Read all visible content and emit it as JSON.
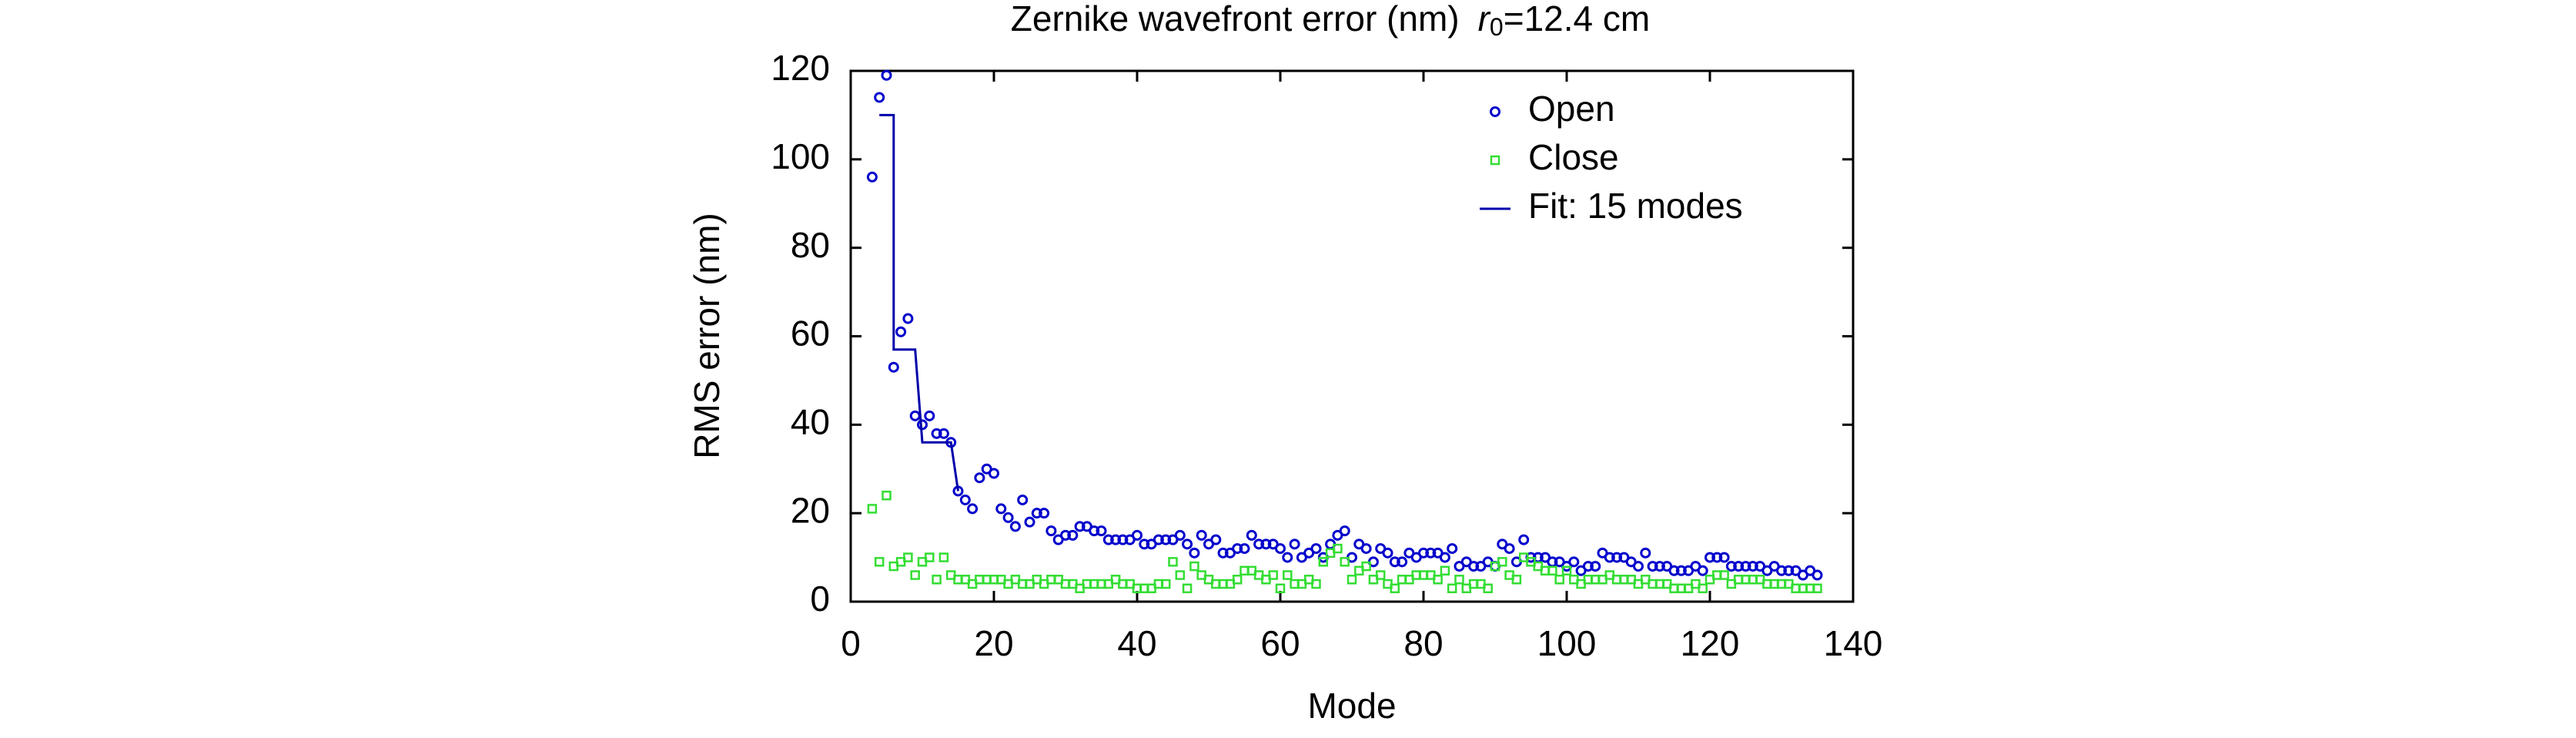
{
  "chart_data": {
    "type": "scatter",
    "title": {
      "text": "Zernike wavefront error (nm)",
      "var": "r",
      "sub": "0",
      "rest": "=12.4 cm"
    },
    "x_label": "Mode",
    "y_label": "RMS error (nm)",
    "xlim": [
      0,
      140
    ],
    "xticks": [
      0,
      20,
      40,
      60,
      80,
      100,
      120,
      140
    ],
    "ylim": [
      0,
      120
    ],
    "yticks": [
      0,
      20,
      40,
      60,
      80,
      100,
      120
    ],
    "legend": "upper right",
    "x": [
      3,
      4,
      5,
      6,
      7,
      8,
      9,
      10,
      11,
      12,
      13,
      14,
      15,
      16,
      17,
      18,
      19,
      20,
      21,
      22,
      23,
      24,
      25,
      26,
      27,
      28,
      29,
      30,
      31,
      32,
      33,
      34,
      35,
      36,
      37,
      38,
      39,
      40,
      41,
      42,
      43,
      44,
      45,
      46,
      47,
      48,
      49,
      50,
      51,
      52,
      53,
      54,
      55,
      56,
      57,
      58,
      59,
      60,
      61,
      62,
      63,
      64,
      65,
      66,
      67,
      68,
      69,
      70,
      71,
      72,
      73,
      74,
      75,
      76,
      77,
      78,
      79,
      80,
      81,
      82,
      83,
      84,
      85,
      86,
      87,
      88,
      89,
      90,
      91,
      92,
      93,
      94,
      95,
      96,
      97,
      98,
      99,
      100,
      101,
      102,
      103,
      104,
      105,
      106,
      107,
      108,
      109,
      110,
      111,
      112,
      113,
      114,
      115,
      116,
      117,
      118,
      119,
      120,
      121,
      122,
      123,
      124,
      125,
      126,
      127,
      128,
      129,
      130,
      131,
      132,
      133,
      134,
      135
    ],
    "series": [
      {
        "name": "Open",
        "color": "#0000cc",
        "marker": "circle",
        "values": [
          96,
          114,
          119,
          53,
          61,
          64,
          42,
          40,
          42,
          38,
          38,
          36,
          25,
          23,
          21,
          28,
          30,
          29,
          21,
          19,
          17,
          23,
          18,
          20,
          20,
          16,
          14,
          15,
          15,
          17,
          17,
          16,
          16,
          14,
          14,
          14,
          14,
          15,
          13,
          13,
          14,
          14,
          14,
          15,
          13,
          11,
          15,
          13,
          14,
          11,
          11,
          12,
          12,
          15,
          13,
          13,
          13,
          12,
          10,
          13,
          10,
          11,
          12,
          10,
          13,
          15,
          16,
          10,
          13,
          12,
          9,
          12,
          11,
          9,
          9,
          11,
          10,
          11,
          11,
          11,
          10,
          12,
          8,
          9,
          8,
          8,
          9,
          8,
          13,
          12,
          9,
          14,
          10,
          10,
          10,
          9,
          9,
          8,
          9,
          7,
          8,
          8,
          11,
          10,
          10,
          10,
          9,
          8,
          11,
          8,
          8,
          8,
          7,
          7,
          7,
          8,
          7,
          10,
          10,
          10,
          8,
          8,
          8,
          8,
          8,
          7,
          8,
          7,
          7,
          7,
          6,
          7,
          6
        ]
      },
      {
        "name": "Close",
        "color": "#33dd33",
        "marker": "square",
        "values": [
          21,
          9,
          24,
          8,
          9,
          10,
          6,
          9,
          10,
          5,
          10,
          6,
          5,
          5,
          4,
          5,
          5,
          5,
          5,
          4,
          5,
          4,
          4,
          5,
          4,
          5,
          5,
          4,
          4,
          3,
          4,
          4,
          4,
          4,
          5,
          4,
          4,
          3,
          3,
          3,
          4,
          4,
          9,
          6,
          3,
          8,
          6,
          5,
          4,
          4,
          4,
          5,
          7,
          7,
          6,
          5,
          6,
          3,
          6,
          4,
          4,
          5,
          4,
          9,
          11,
          12,
          9,
          5,
          7,
          8,
          5,
          6,
          4,
          3,
          5,
          5,
          6,
          6,
          6,
          5,
          7,
          3,
          5,
          3,
          4,
          4,
          3,
          8,
          9,
          6,
          5,
          10,
          9,
          8,
          7,
          7,
          5,
          7,
          5,
          4,
          5,
          5,
          5,
          6,
          5,
          5,
          5,
          4,
          5,
          4,
          4,
          4,
          3,
          3,
          3,
          4,
          3,
          5,
          6,
          6,
          4,
          5,
          5,
          5,
          5,
          4,
          4,
          4,
          4,
          3,
          3,
          3,
          3
        ]
      },
      {
        "name": "Fit: 15 modes",
        "color": "#0000aa",
        "marker": "line",
        "x": [
          4,
          6,
          6,
          9,
          10,
          14,
          15
        ],
        "values": [
          110,
          110,
          57,
          57,
          36,
          36,
          25
        ]
      }
    ]
  }
}
